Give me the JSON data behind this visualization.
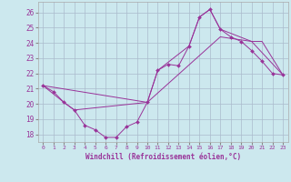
{
  "xlabel": "Windchill (Refroidissement éolien,°C)",
  "bg_color": "#cce8ee",
  "grid_color": "#aabbcc",
  "line_color": "#993399",
  "ylim": [
    17.5,
    26.7
  ],
  "xlim": [
    -0.5,
    23.5
  ],
  "yticks": [
    18,
    19,
    20,
    21,
    22,
    23,
    24,
    25,
    26
  ],
  "xticks": [
    0,
    1,
    2,
    3,
    4,
    5,
    6,
    7,
    8,
    9,
    10,
    11,
    12,
    13,
    14,
    15,
    16,
    17,
    18,
    19,
    20,
    21,
    22,
    23
  ],
  "line1_x": [
    0,
    1,
    2,
    3,
    4,
    5,
    6,
    7,
    8,
    9,
    10,
    11,
    12,
    13,
    14,
    15,
    16,
    17,
    18,
    19,
    20,
    21,
    22,
    23
  ],
  "line1_y": [
    21.2,
    20.8,
    20.1,
    19.6,
    18.6,
    18.3,
    17.8,
    17.8,
    18.5,
    18.8,
    20.1,
    22.2,
    22.6,
    22.5,
    23.8,
    25.7,
    26.2,
    24.9,
    24.4,
    24.1,
    23.5,
    22.8,
    22.0,
    21.9
  ],
  "line2_x": [
    0,
    2,
    3,
    10,
    11,
    14,
    15,
    16,
    17,
    20,
    21,
    23
  ],
  "line2_y": [
    21.2,
    20.1,
    19.6,
    20.1,
    22.2,
    23.8,
    25.7,
    26.2,
    24.9,
    24.1,
    24.1,
    21.9
  ],
  "line3_x": [
    0,
    10,
    17,
    20,
    23
  ],
  "line3_y": [
    21.2,
    20.1,
    24.4,
    24.1,
    21.9
  ]
}
